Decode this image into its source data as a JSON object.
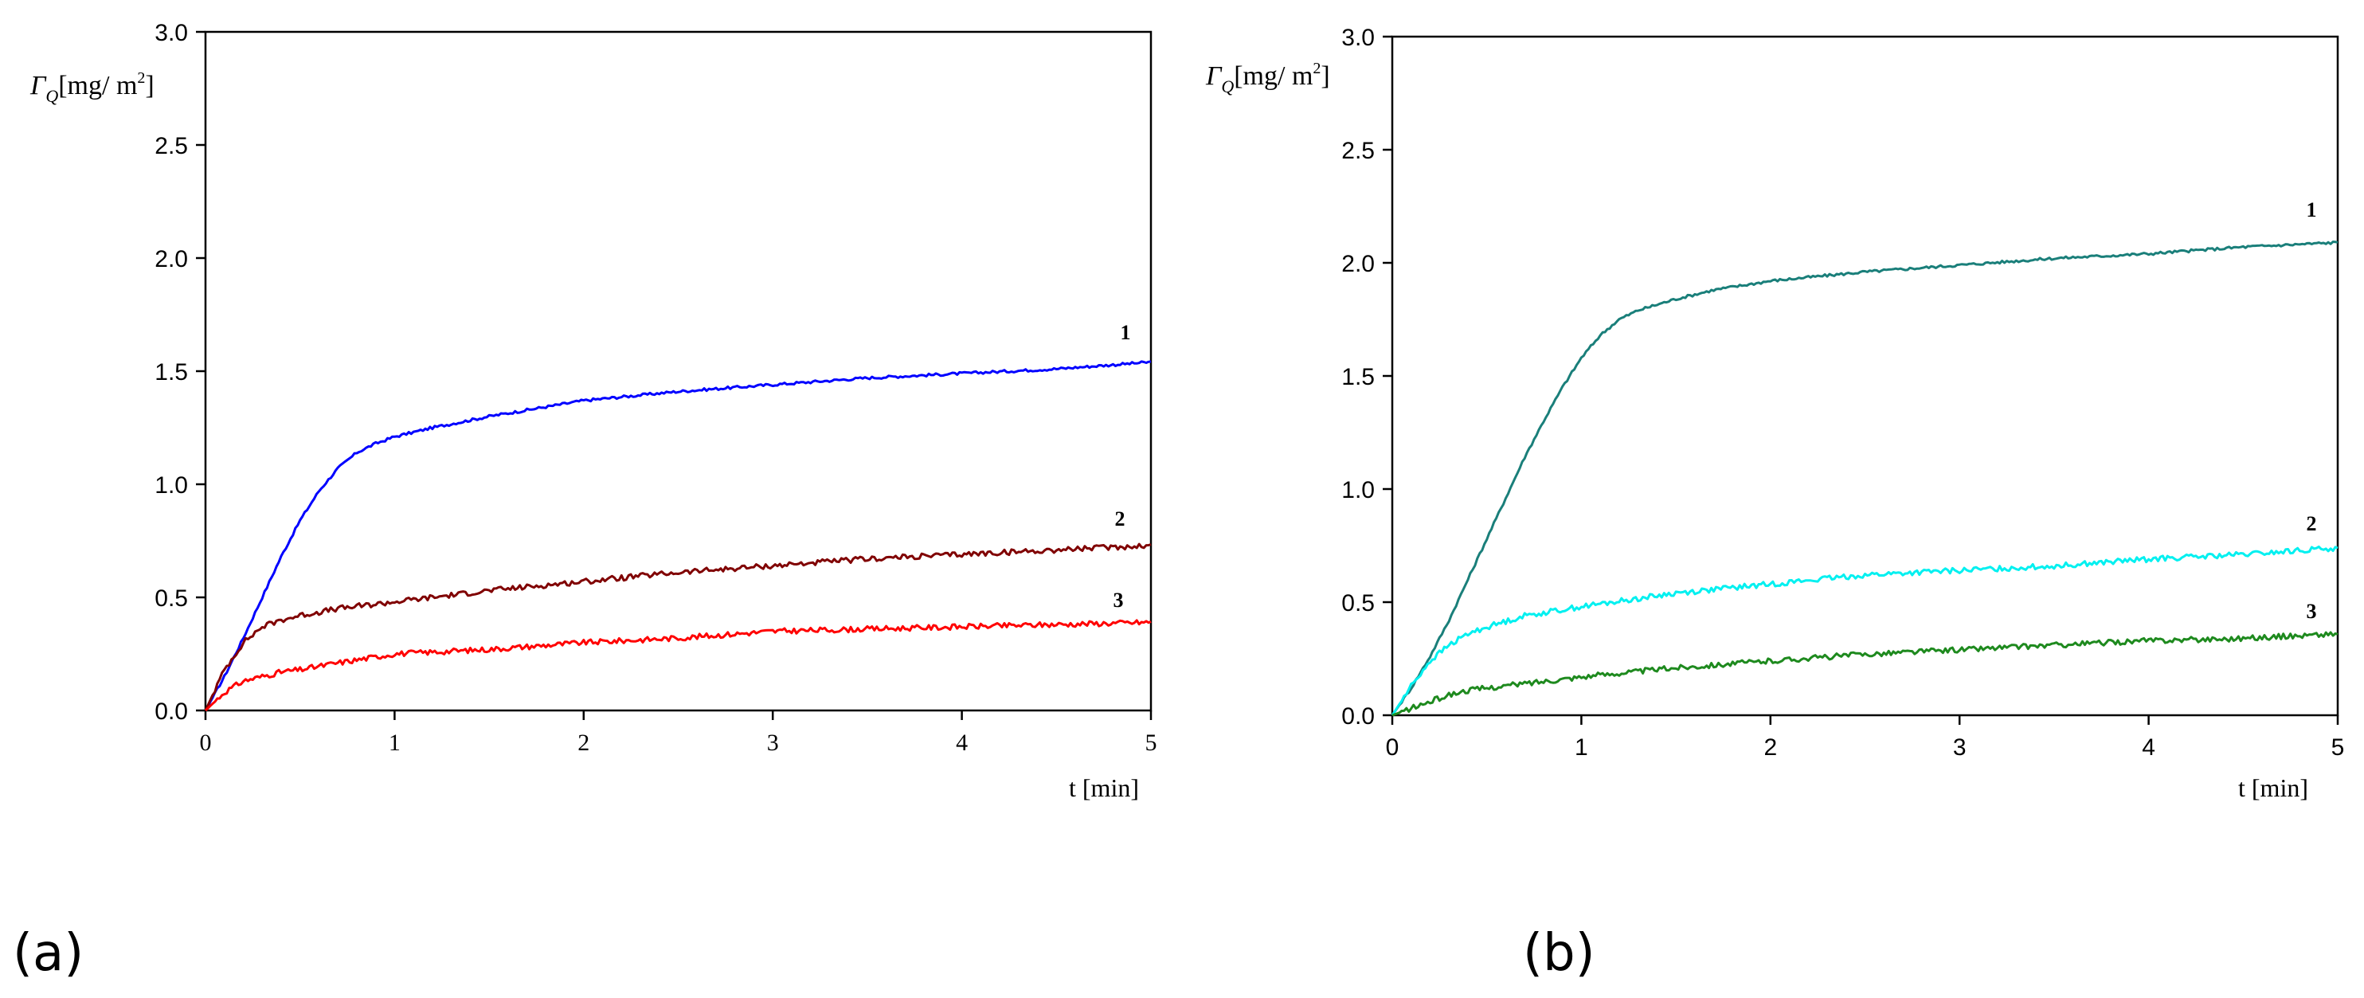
{
  "chart_data": [
    {
      "type": "line",
      "panel_label": "(a)",
      "title": "",
      "xlabel": "t [min]",
      "ylabel": {
        "symbol": "Γ",
        "sub": "Q",
        "unit_pre": "[mg/ m",
        "sup": "2",
        "unit_post": "]"
      },
      "xlim": [
        0,
        5
      ],
      "ylim": [
        0,
        3
      ],
      "xticks": [
        "0",
        "1",
        "2",
        "3",
        "4",
        "5"
      ],
      "yticks": [
        "0.0",
        "0.5",
        "1.0",
        "1.5",
        "2.0",
        "2.5",
        "3.0"
      ],
      "grid": false,
      "series": [
        {
          "name": "1",
          "color": "#0000ff",
          "x": [
            0,
            0.1,
            0.2,
            0.3,
            0.4,
            0.5,
            0.6,
            0.7,
            0.8,
            0.9,
            1.0,
            1.2,
            1.5,
            2.0,
            2.5,
            3.0,
            3.5,
            4.0,
            4.5,
            5.0
          ],
          "y": [
            0,
            0.15,
            0.32,
            0.5,
            0.68,
            0.84,
            0.97,
            1.07,
            1.14,
            1.18,
            1.21,
            1.25,
            1.3,
            1.37,
            1.41,
            1.44,
            1.47,
            1.49,
            1.51,
            1.54
          ]
        },
        {
          "name": "2",
          "color": "#800000",
          "x": [
            0,
            0.1,
            0.2,
            0.3,
            0.4,
            0.5,
            0.7,
            1.0,
            1.5,
            2.0,
            2.5,
            3.0,
            3.5,
            4.0,
            4.5,
            5.0
          ],
          "y": [
            0,
            0.18,
            0.3,
            0.37,
            0.4,
            0.42,
            0.45,
            0.48,
            0.53,
            0.57,
            0.61,
            0.64,
            0.67,
            0.69,
            0.71,
            0.73
          ]
        },
        {
          "name": "3",
          "color": "#ff0000",
          "x": [
            0,
            0.1,
            0.2,
            0.3,
            0.4,
            0.5,
            0.7,
            1.0,
            1.5,
            2.0,
            2.5,
            3.0,
            3.5,
            4.0,
            4.5,
            5.0
          ],
          "y": [
            0,
            0.08,
            0.13,
            0.15,
            0.17,
            0.18,
            0.21,
            0.25,
            0.27,
            0.3,
            0.32,
            0.35,
            0.36,
            0.37,
            0.38,
            0.39
          ]
        }
      ]
    },
    {
      "type": "line",
      "panel_label": "(b)",
      "title": "",
      "xlabel": "t [min]",
      "ylabel": {
        "symbol": "Γ",
        "sub": "Q",
        "unit_pre": "[mg/ m",
        "sup": "2",
        "unit_post": "]"
      },
      "xlim": [
        0,
        5
      ],
      "ylim": [
        0,
        3
      ],
      "xticks": [
        "0",
        "1",
        "2",
        "3",
        "4",
        "5"
      ],
      "yticks": [
        "0.0",
        "0.5",
        "1.0",
        "1.5",
        "2.0",
        "2.5",
        "3.0"
      ],
      "grid": false,
      "series": [
        {
          "name": "1",
          "color": "#1a7f7a",
          "x": [
            0,
            0.1,
            0.2,
            0.3,
            0.4,
            0.5,
            0.6,
            0.7,
            0.8,
            0.9,
            1.0,
            1.1,
            1.2,
            1.3,
            1.5,
            1.7,
            2.0,
            2.5,
            3.0,
            3.5,
            4.0,
            4.5,
            5.0
          ],
          "y": [
            0,
            0.12,
            0.26,
            0.42,
            0.6,
            0.78,
            0.96,
            1.14,
            1.3,
            1.45,
            1.58,
            1.68,
            1.75,
            1.79,
            1.84,
            1.88,
            1.92,
            1.96,
            1.99,
            2.02,
            2.04,
            2.07,
            2.09
          ]
        },
        {
          "name": "2",
          "color": "#00f0f0",
          "x": [
            0,
            0.1,
            0.2,
            0.3,
            0.4,
            0.5,
            0.7,
            1.0,
            1.5,
            2.0,
            2.5,
            3.0,
            3.5,
            4.0,
            4.5,
            5.0
          ],
          "y": [
            0,
            0.13,
            0.24,
            0.31,
            0.36,
            0.39,
            0.44,
            0.48,
            0.54,
            0.58,
            0.62,
            0.64,
            0.66,
            0.69,
            0.71,
            0.74
          ]
        },
        {
          "name": "3",
          "color": "#1e8a1e",
          "x": [
            0,
            0.1,
            0.2,
            0.3,
            0.4,
            0.5,
            0.7,
            1.0,
            1.5,
            2.0,
            2.5,
            3.0,
            3.5,
            4.0,
            4.5,
            5.0
          ],
          "y": [
            0,
            0.03,
            0.06,
            0.09,
            0.11,
            0.12,
            0.14,
            0.17,
            0.21,
            0.24,
            0.27,
            0.29,
            0.31,
            0.33,
            0.34,
            0.36
          ]
        }
      ]
    }
  ]
}
